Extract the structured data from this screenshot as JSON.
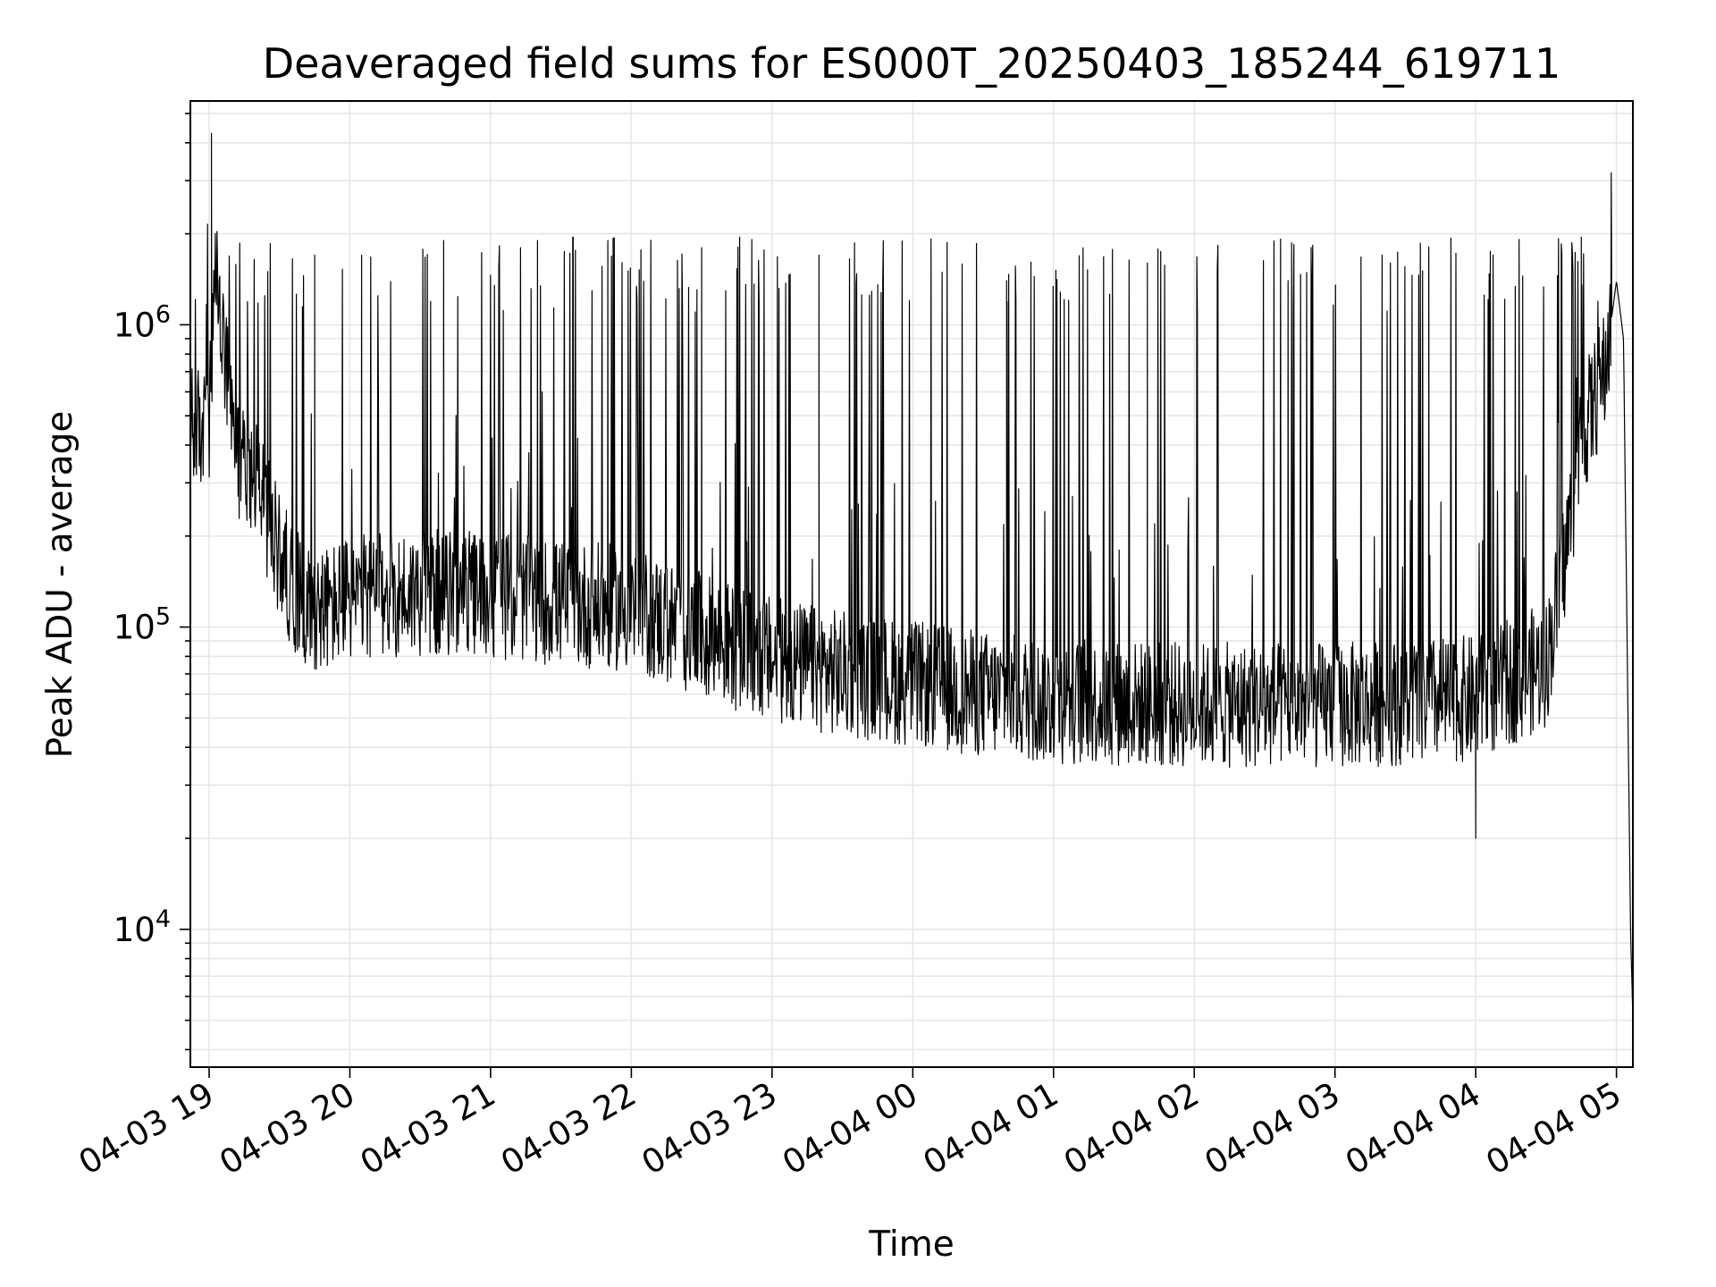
{
  "chart_data": {
    "type": "line",
    "title": "Deaveraged field sums for ES000T_20250403_185244_619711",
    "xlabel": "Time",
    "ylabel": "Peak ADU - average",
    "yscale": "log",
    "ylim": [
      3500,
      5500000
    ],
    "xlim": [
      "2025-04-03T18:52",
      "2025-04-04T05:07"
    ],
    "grid": true,
    "line_color": "#000000",
    "grid_color": "#e6e6e6",
    "x_ticks": [
      {
        "t": "2025-04-03T19:00",
        "label": "04-03 19"
      },
      {
        "t": "2025-04-03T20:00",
        "label": "04-03 20"
      },
      {
        "t": "2025-04-03T21:00",
        "label": "04-03 21"
      },
      {
        "t": "2025-04-03T22:00",
        "label": "04-03 22"
      },
      {
        "t": "2025-04-03T23:00",
        "label": "04-03 23"
      },
      {
        "t": "2025-04-04T00:00",
        "label": "04-04 00"
      },
      {
        "t": "2025-04-04T01:00",
        "label": "04-04 01"
      },
      {
        "t": "2025-04-04T02:00",
        "label": "04-04 02"
      },
      {
        "t": "2025-04-04T03:00",
        "label": "04-04 03"
      },
      {
        "t": "2025-04-04T04:00",
        "label": "04-04 04"
      },
      {
        "t": "2025-04-04T05:00",
        "label": "04-04 05"
      }
    ],
    "y_ticks": [
      {
        "value": 10000,
        "base": "10",
        "exp": "4"
      },
      {
        "value": 100000,
        "base": "10",
        "exp": "5"
      },
      {
        "value": 1000000,
        "base": "10",
        "exp": "6"
      }
    ],
    "series": [
      {
        "baseline": [
          {
            "t": "2025-04-03T18:52",
            "y": 450000
          },
          {
            "t": "2025-04-03T19:00",
            "y": 450000
          },
          {
            "t": "2025-04-03T19:03",
            "y": 1500000
          },
          {
            "t": "2025-04-03T19:07",
            "y": 700000
          },
          {
            "t": "2025-04-03T19:11",
            "y": 380000
          },
          {
            "t": "2025-04-03T19:20",
            "y": 330000
          },
          {
            "t": "2025-04-03T19:27",
            "y": 200000
          },
          {
            "t": "2025-04-03T19:35",
            "y": 140000
          },
          {
            "t": "2025-04-03T19:40",
            "y": 120000
          },
          {
            "t": "2025-04-03T19:50",
            "y": 115000
          },
          {
            "t": "2025-04-03T20:00",
            "y": 125000
          },
          {
            "t": "2025-04-03T20:30",
            "y": 130000
          },
          {
            "t": "2025-04-03T21:00",
            "y": 128000
          },
          {
            "t": "2025-04-03T21:30",
            "y": 120000
          },
          {
            "t": "2025-04-03T22:00",
            "y": 115000
          },
          {
            "t": "2025-04-03T22:20",
            "y": 100000
          },
          {
            "t": "2025-04-03T22:40",
            "y": 88000
          },
          {
            "t": "2025-04-03T23:00",
            "y": 78000
          },
          {
            "t": "2025-04-03T23:30",
            "y": 70000
          },
          {
            "t": "2025-04-04T00:00",
            "y": 65000
          },
          {
            "t": "2025-04-04T00:30",
            "y": 60000
          },
          {
            "t": "2025-04-04T01:00",
            "y": 57000
          },
          {
            "t": "2025-04-04T02:00",
            "y": 55000
          },
          {
            "t": "2025-04-04T03:00",
            "y": 55000
          },
          {
            "t": "2025-04-04T04:00",
            "y": 58000
          },
          {
            "t": "2025-04-04T04:30",
            "y": 75000
          },
          {
            "t": "2025-04-04T04:38",
            "y": 170000
          },
          {
            "t": "2025-04-04T04:45",
            "y": 420000
          },
          {
            "t": "2025-04-04T04:55",
            "y": 700000
          },
          {
            "t": "2025-04-04T05:00",
            "y": 1400000
          },
          {
            "t": "2025-04-04T05:03",
            "y": 900000
          },
          {
            "t": "2025-04-04T05:06",
            "y": 10000
          },
          {
            "t": "2025-04-04T05:07",
            "y": 5000
          }
        ],
        "spike_peaks": [
          {
            "t": "2025-04-03T19:01",
            "y": 4300000
          },
          {
            "t": "2025-04-03T19:25",
            "y": 1500000
          },
          {
            "t": "2025-04-03T19:45",
            "y": 1700000
          },
          {
            "t": "2025-04-03T20:05",
            "y": 1700000
          },
          {
            "t": "2025-04-03T20:40",
            "y": 1900000
          },
          {
            "t": "2025-04-03T21:20",
            "y": 1900000
          },
          {
            "t": "2025-04-03T21:35",
            "y": 1950000
          },
          {
            "t": "2025-04-03T21:50",
            "y": 1900000
          },
          {
            "t": "2025-04-03T22:30",
            "y": 1800000
          },
          {
            "t": "2025-04-03T23:20",
            "y": 1700000
          },
          {
            "t": "2025-04-04T00:40",
            "y": 1400000
          },
          {
            "t": "2025-04-04T01:40",
            "y": 1600000
          },
          {
            "t": "2025-04-04T02:40",
            "y": 1400000
          },
          {
            "t": "2025-04-04T03:40",
            "y": 1500000
          },
          {
            "t": "2025-04-04T04:20",
            "y": 1450000
          },
          {
            "t": "2025-04-04T04:45",
            "y": 1950000
          }
        ],
        "notable_dips": [
          {
            "t": "2025-04-04T04:00",
            "y": 20000
          }
        ]
      }
    ]
  }
}
